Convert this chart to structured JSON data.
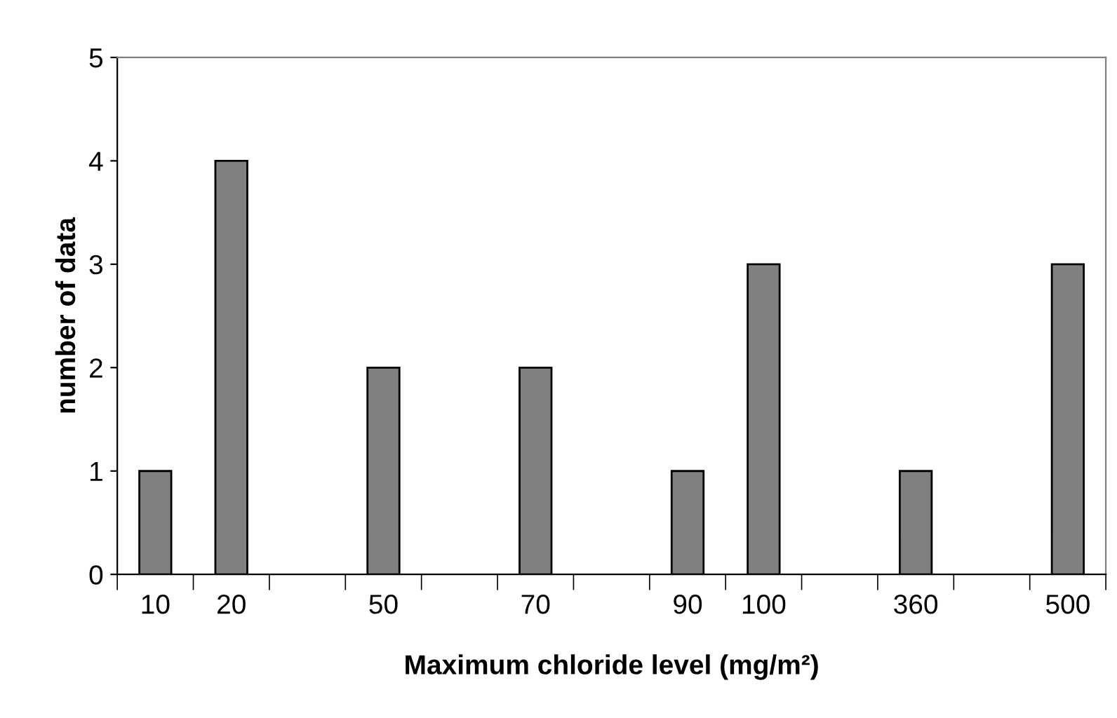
{
  "chart_data": {
    "type": "bar",
    "xlabel": "Maximum chloride level (mg/m²)",
    "ylabel": "number of data",
    "categories": [
      "10",
      "20",
      null,
      "50",
      null,
      "70",
      null,
      "90",
      "100",
      null,
      "360",
      null,
      "500"
    ],
    "values": [
      1,
      4,
      null,
      2,
      null,
      2,
      null,
      1,
      3,
      null,
      1,
      null,
      3
    ],
    "color": "#808080",
    "ylim": [
      0,
      5
    ],
    "yticks": [
      0,
      1,
      2,
      3,
      4,
      5
    ],
    "grid": false,
    "legend": false
  }
}
